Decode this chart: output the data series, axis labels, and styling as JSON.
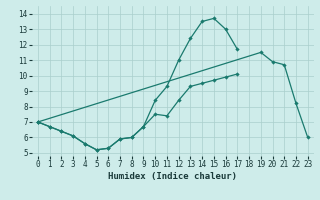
{
  "s1_x": [
    0,
    1,
    2,
    3,
    4,
    5,
    6,
    7,
    8,
    9,
    10,
    11,
    12,
    13,
    14,
    15,
    16,
    17
  ],
  "s1_y": [
    7.0,
    6.7,
    6.4,
    6.1,
    5.6,
    5.2,
    5.3,
    5.9,
    6.0,
    6.7,
    8.4,
    9.3,
    11.0,
    12.4,
    13.5,
    13.7,
    13.0,
    11.7
  ],
  "s2_x": [
    0,
    1,
    2,
    3,
    4,
    5,
    6,
    7,
    8,
    9,
    10,
    11,
    12,
    13,
    14,
    15,
    16,
    17
  ],
  "s2_y": [
    7.0,
    6.7,
    6.4,
    6.1,
    5.6,
    5.2,
    5.3,
    5.9,
    6.0,
    6.7,
    7.5,
    7.4,
    8.4,
    9.3,
    9.5,
    9.7,
    9.9,
    10.1
  ],
  "s3_x": [
    0,
    19,
    20,
    21,
    22,
    23
  ],
  "s3_y": [
    7.0,
    11.5,
    10.9,
    10.7,
    8.2,
    6.0
  ],
  "color": "#1a7a6e",
  "bg_color": "#ceecea",
  "grid_color": "#aacfcc",
  "xlabel": "Humidex (Indice chaleur)",
  "xlim": [
    -0.5,
    23.5
  ],
  "ylim": [
    4.8,
    14.5
  ],
  "yticks": [
    5,
    6,
    7,
    8,
    9,
    10,
    11,
    12,
    13,
    14
  ],
  "xticks": [
    0,
    1,
    2,
    3,
    4,
    5,
    6,
    7,
    8,
    9,
    10,
    11,
    12,
    13,
    14,
    15,
    16,
    17,
    18,
    19,
    20,
    21,
    22,
    23
  ],
  "xlabel_fontsize": 6.5,
  "tick_fontsize": 5.5
}
